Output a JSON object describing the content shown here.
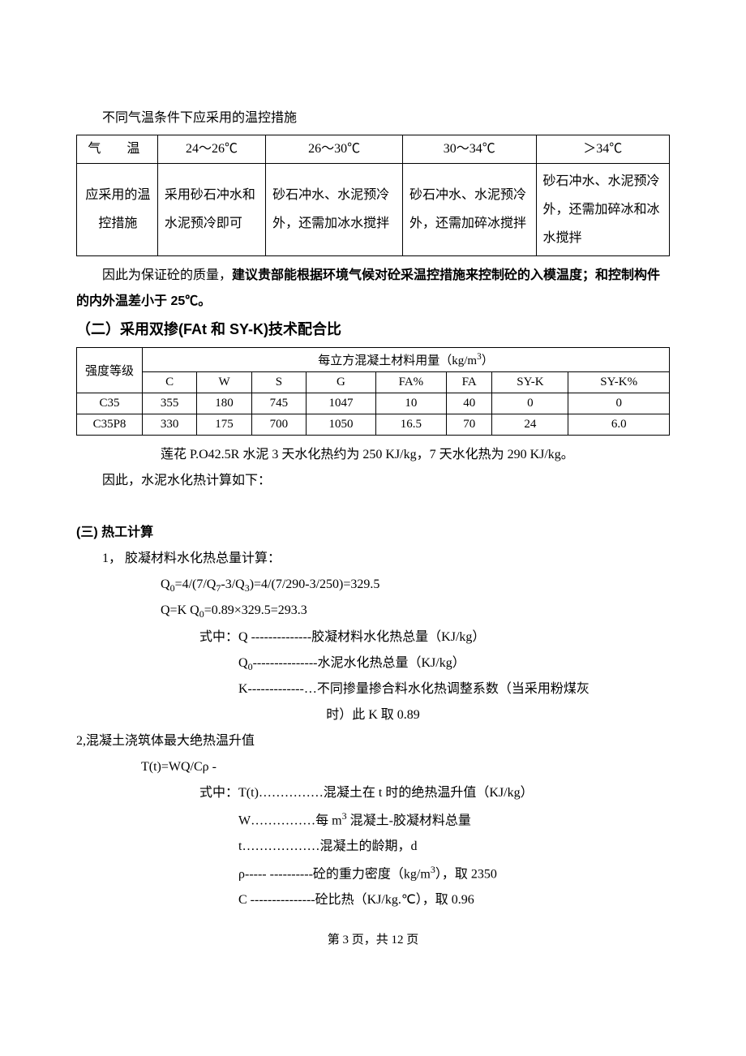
{
  "intro_line": "不同气温条件下应采用的温控措施",
  "table1": {
    "header": [
      "气　温",
      "24～26℃",
      "26～30℃",
      "30～34℃",
      "＞34℃"
    ],
    "row_label": "应采用的温控措施",
    "cells": [
      "采用砂石冲水和水泥预冷即可",
      "砂石冲水、水泥预冷外，还需加冰水搅拌",
      "砂石冲水、水泥预冷外，还需加碎冰搅拌",
      "砂石冲水、水泥预冷外，还需加碎冰和冰水搅拌"
    ]
  },
  "para_after_t1_a": "因此为保证砼的质量，",
  "para_after_t1_b": "建议贵部能根据环境气候对砼采温控措施来控制砼的入模温度；和控制构件的内外温差小于 25℃。",
  "h2_section2": "（二）采用双掺(FAt 和 SY-K)技术配合比",
  "table2": {
    "row1_label": "强度等级",
    "row1_span_label": "每立方混凝土材料用量（kg/m",
    "row1_span_label_sup": "3",
    "row1_span_label_end": "）",
    "cols": [
      "C",
      "W",
      "S",
      "G",
      "FA%",
      "FA",
      "SY-K",
      "SY-K%"
    ],
    "rows": [
      {
        "grade": "C35",
        "vals": [
          "355",
          "180",
          "745",
          "1047",
          "10",
          "40",
          "0",
          "0"
        ]
      },
      {
        "grade": "C35P8",
        "vals": [
          "330",
          "175",
          "700",
          "1050",
          "16.5",
          "70",
          "24",
          "6.0"
        ]
      }
    ]
  },
  "line_lotus": "莲花 P.O42.5R 水泥 3 天水化热约为 250 KJ/kg，7 天水化热为 290 KJ/kg。",
  "line_therefore": "因此，水泥水化热计算如下：",
  "h3_section3": "(三) 热工计算",
  "item1_title": "1， 胶凝材料水化热总量计算：",
  "eq1": "Q",
  "eq1_sub": "0",
  "eq1_rest": "=4/(7/Q",
  "eq1_sub2": "7",
  "eq1_rest2": "-3/Q",
  "eq1_sub3": "3",
  "eq1_rest3": ")=4/(7/290-3/250)=329.5",
  "eq2_a": "Q=K Q",
  "eq2_sub": "0",
  "eq2_b": "=0.89×329.5=293.3",
  "legend_prefix": "式中：",
  "legend1": "Q --------------胶凝材料水化热总量（KJ/kg）",
  "legend2a": "Q",
  "legend2sub": "0",
  "legend2b": "---------------水泥水化热总量（KJ/kg）",
  "legend3": "K-------------…不同掺量掺合料水化热调整系数（当采用粉煤灰",
  "legend3_cont": "时）此 K 取 0.89",
  "item2_title": "2,混凝土浇筑体最大绝热温升值",
  "eq3": "T(t)=WQ/Cρ",
  "legend4": "T(t)……………混凝土在 t 时的绝热温升值（KJ/kg）",
  "legend5": "W……………每 m",
  "legend5_sup": "3",
  "legend5_end": " 混凝土-胶凝材料总量",
  "legend6": "t………………混凝土的龄期，d",
  "legend7": "ρ----- ----------砼的重力密度（kg/m",
  "legend7_sup": "3",
  "legend7_end": "），取 2350",
  "legend8": "C ---------------砼比热（KJ/kg.℃），取 0.96",
  "footer": "第 3 页，共 12 页"
}
